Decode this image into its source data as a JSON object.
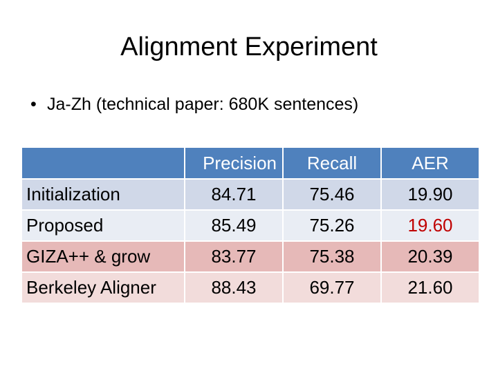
{
  "title": "Alignment Experiment",
  "bullet": "Ja-Zh  (technical paper: 680K  sentences)",
  "table": {
    "headers": [
      "",
      "Precision",
      "Recall",
      "AER"
    ],
    "rows": [
      {
        "label": "Initialization",
        "precision": "84.71",
        "recall": "75.46",
        "aer": "19.90"
      },
      {
        "label": "Proposed",
        "precision": "85.49",
        "recall": "75.26",
        "aer": "19.60"
      },
      {
        "label": "GIZA++ & grow",
        "precision": "83.77",
        "recall": "75.38",
        "aer": "20.39"
      },
      {
        "label": "Berkeley Aligner",
        "precision": "88.43",
        "recall": "69.77",
        "aer": "21.60"
      }
    ]
  },
  "colors": {
    "header": "#4f81bd",
    "highlight": "#c00000"
  }
}
